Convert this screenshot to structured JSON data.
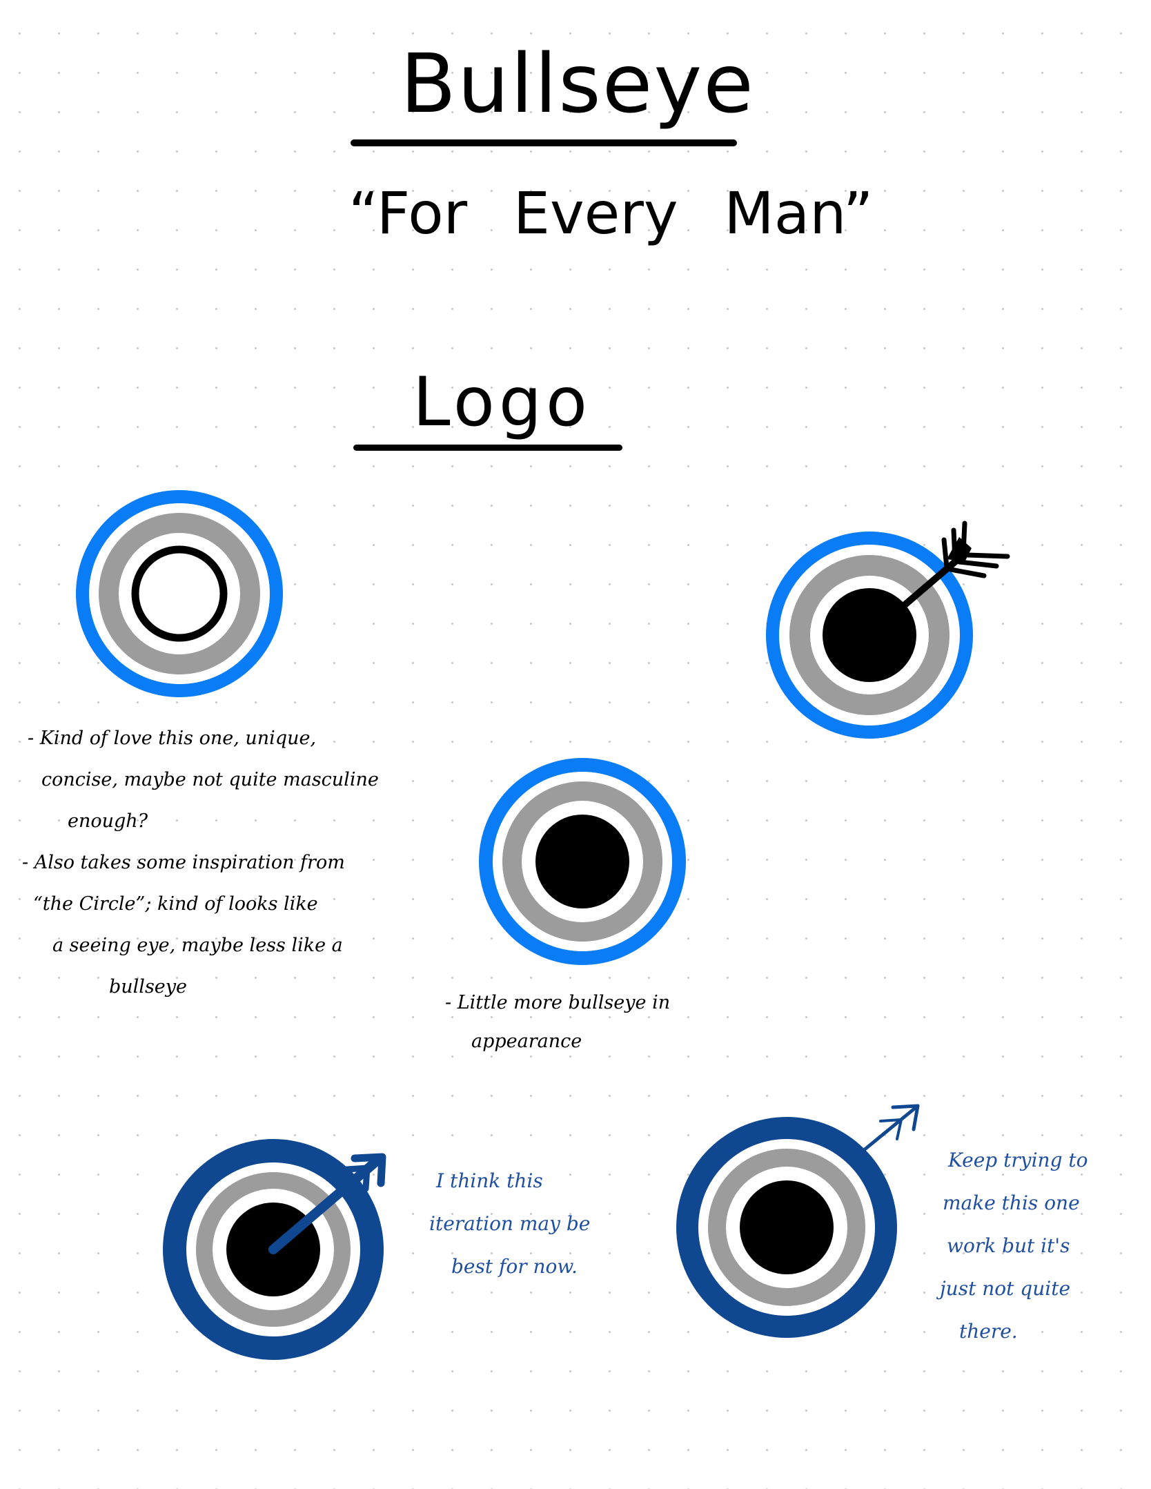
{
  "page": {
    "title": "Bullseye",
    "tagline": "“For Every Man”",
    "section_heading": "Logo"
  },
  "colors": {
    "bright_blue": "#0a7cf5",
    "navy_blue": "#0f4791",
    "gray": "#9c9c9c",
    "black": "#000000",
    "note_blue": "#1f4fa0"
  },
  "notes": {
    "concept_1": [
      "- Kind of love this one, unique,",
      "concise, maybe not quite masculine",
      "enough?",
      "- Also takes some inspiration from",
      "“the Circle”; kind of looks like",
      "a seeing eye, maybe less like a",
      "bullseye"
    ],
    "concept_3": [
      "- Little more bullseye in",
      "appearance"
    ],
    "concept_4": [
      "I think this",
      "iteration may be",
      "best for now."
    ],
    "concept_5": [
      "Keep trying to",
      "make this one",
      "work but it's",
      "just not quite",
      "there."
    ]
  }
}
